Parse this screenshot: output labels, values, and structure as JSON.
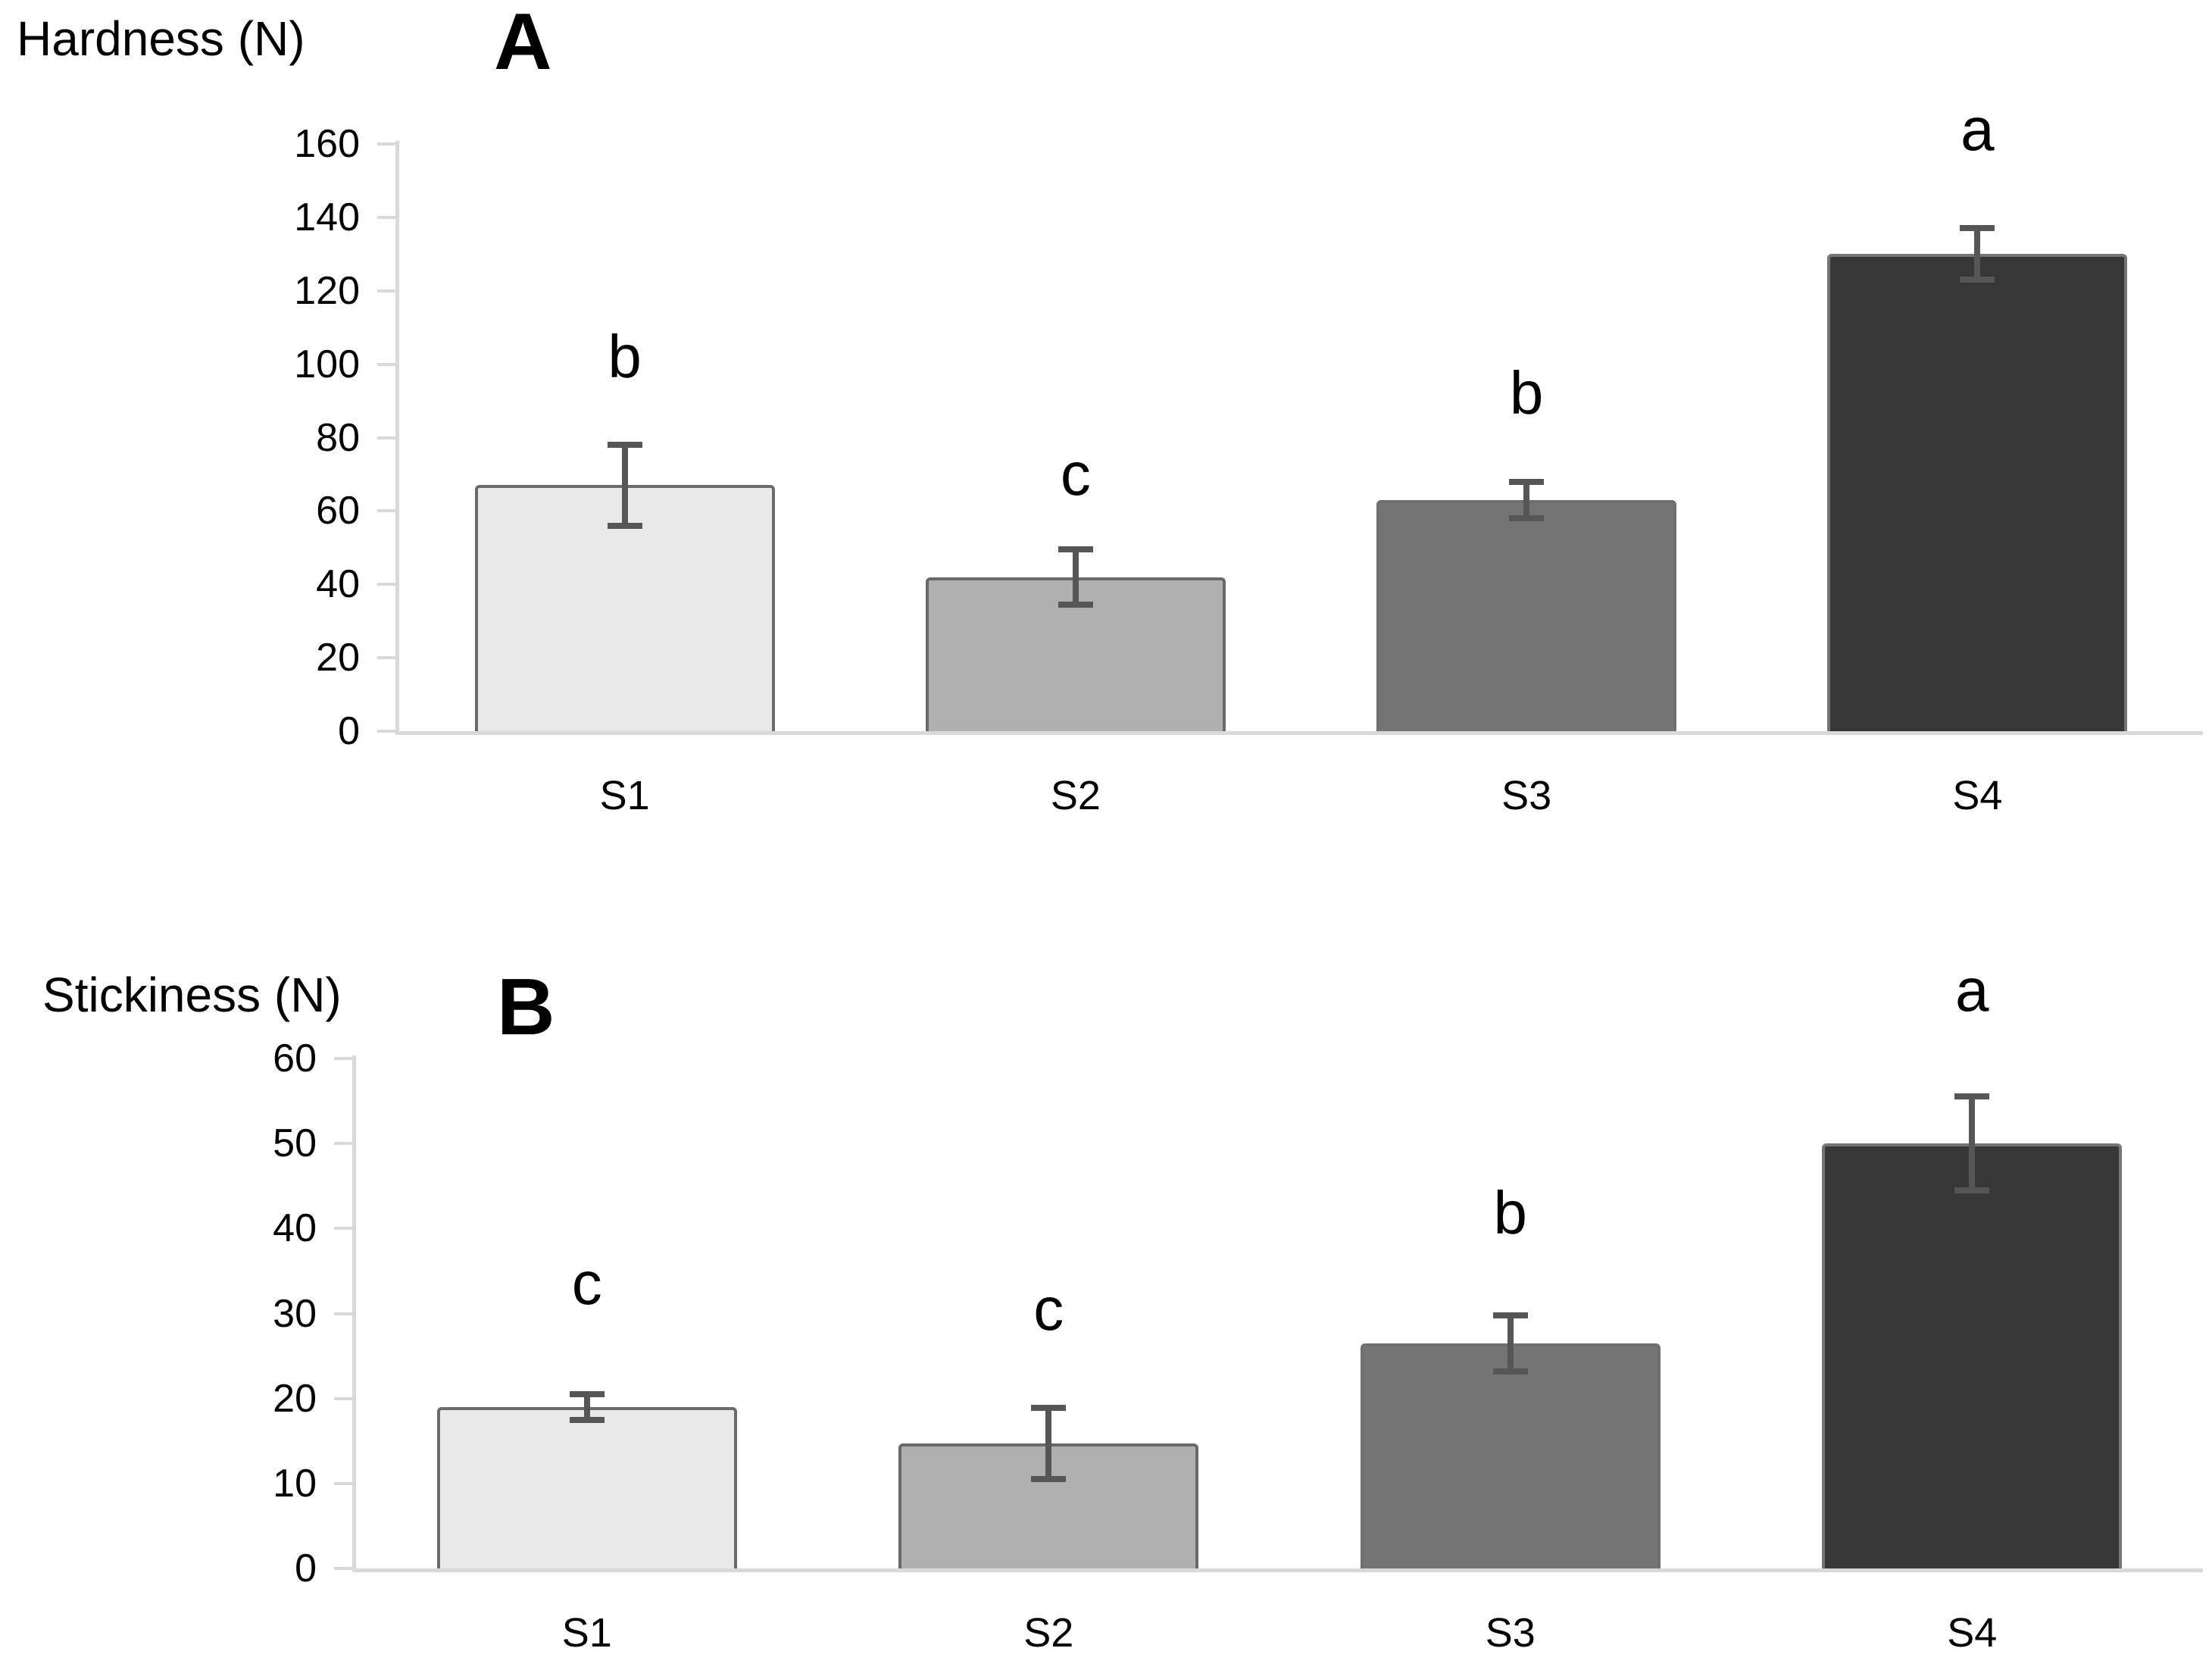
{
  "styles": {
    "background": "#ffffff",
    "axis_color": "#d9d9d9",
    "error_bar_color": "#565656",
    "text_color": "#000000"
  },
  "chart_data": [
    {
      "type": "bar",
      "panel_label": "A",
      "title": "Hardness (N)",
      "xlabel": "",
      "ylabel": "Hardness (N)",
      "categories": [
        "S1",
        "S2",
        "S3",
        "S4"
      ],
      "values": [
        67,
        42,
        63,
        130
      ],
      "errors": [
        11,
        7.5,
        5,
        7
      ],
      "sig_letters": [
        "b",
        "c",
        "b",
        "a"
      ],
      "sig_letter_y": [
        102,
        70,
        92,
        164
      ],
      "bar_fill_colors": [
        "#e9e9e9",
        "#b0b0b0",
        "#747474",
        "#373737"
      ],
      "bar_border_colors": [
        "#6b6b6b",
        "#696969",
        "#6f6f6f",
        "#757575"
      ],
      "ylim": [
        0,
        160
      ],
      "yticks": [
        0,
        20,
        40,
        60,
        80,
        100,
        120,
        140,
        160
      ],
      "grid": false,
      "legend": null
    },
    {
      "type": "bar",
      "panel_label": "B",
      "title": "Stickiness (N)",
      "xlabel": "",
      "ylabel": "Stickiness (N)",
      "categories": [
        "S1",
        "S2",
        "S3",
        "S4"
      ],
      "values": [
        19,
        14.7,
        26.5,
        50
      ],
      "errors": [
        1.5,
        4.2,
        3.3,
        5.5
      ],
      "sig_letters": [
        "c",
        "c",
        "b",
        "a"
      ],
      "sig_letter_y": [
        33.5,
        30.5,
        41.8,
        68
      ],
      "bar_fill_colors": [
        "#e9e9e9",
        "#b0b0b0",
        "#747474",
        "#373737"
      ],
      "bar_border_colors": [
        "#6b6b6b",
        "#696969",
        "#6f6f6f",
        "#757575"
      ],
      "ylim": [
        0,
        60
      ],
      "yticks": [
        0,
        10,
        20,
        30,
        40,
        50,
        60
      ],
      "grid": false,
      "legend": null
    }
  ]
}
